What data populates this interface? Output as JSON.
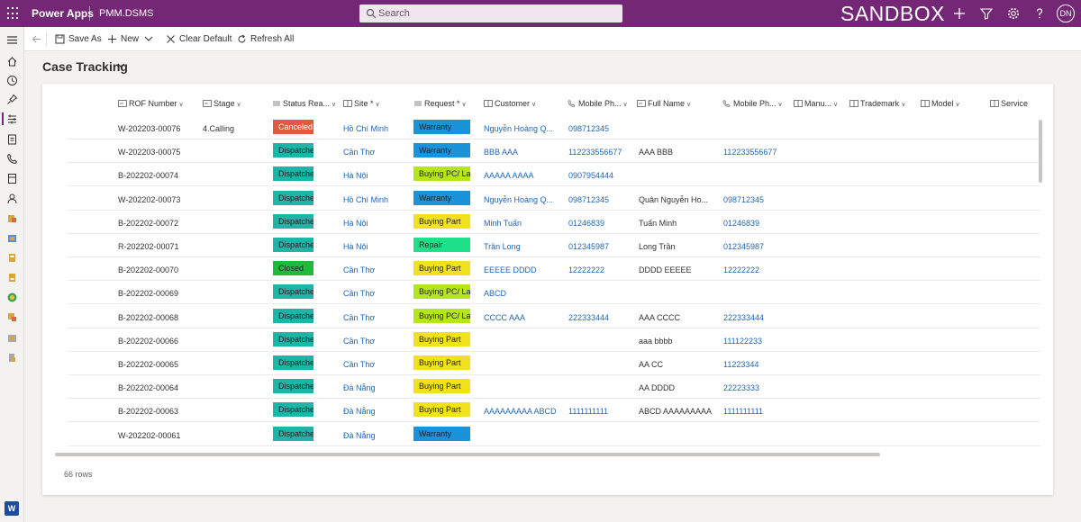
{
  "topbar": {
    "brand": "Power Apps",
    "app_name": "PMM.DSMS",
    "search_placeholder": "Search",
    "environment": "SANDBOX",
    "avatar_initials": "DN",
    "color": "#742774"
  },
  "command_bar": {
    "save_as": "Save As",
    "new": "New",
    "clear_default": "Clear Default",
    "refresh_all": "Refresh All"
  },
  "view": {
    "title": "Case Tracking"
  },
  "columns": {
    "rof_number": "ROF Number",
    "stage": "Stage",
    "status_reason": "Status Rea...",
    "site": "Site *",
    "request": "Request *",
    "customer": "Customer",
    "mobile_phone": "Mobile Ph...",
    "full_name": "Full Name",
    "mobile_phone2": "Mobile Ph...",
    "manufacturer": "Manu...",
    "trademark": "Trademark",
    "model": "Model",
    "service": "Service"
  },
  "status_colors": {
    "Canceled": "#e05a3c",
    "Dispatched": "#1db5a8",
    "Closed": "#1fba3c"
  },
  "request_colors": {
    "Warranty": "#1a93d9",
    "Buying PC/ Lap": "#b5e61d",
    "Buying Part": "#f2e21d",
    "Repair": "#1de089"
  },
  "rows": [
    {
      "rof": "W-202203-00076",
      "stage": "4.Calling",
      "status": "Canceled",
      "site": "Hồ Chí Minh",
      "request": "Warranty",
      "customer": "Nguyễn Hoàng Q...",
      "phone": "098712345",
      "full_name": "",
      "phone2": ""
    },
    {
      "rof": "W-202203-00075",
      "stage": "",
      "status": "Dispatched",
      "site": "Cần Thơ",
      "request": "Warranty",
      "customer": "BBB AAA",
      "phone": "112233556677",
      "full_name": "AAA BBB",
      "phone2": "112233556677"
    },
    {
      "rof": "B-202202-00074",
      "stage": "",
      "status": "Dispatched",
      "site": "Hà Nội",
      "request": "Buying PC/ Lap",
      "customer": "AAAAA AAAA",
      "phone": "0907954444",
      "full_name": "",
      "phone2": ""
    },
    {
      "rof": "W-202202-00073",
      "stage": "",
      "status": "Dispatched",
      "site": "Hồ Chí Minh",
      "request": "Warranty",
      "customer": "Nguyễn Hoàng Q...",
      "phone": "098712345",
      "full_name": "Quân Nguyễn Ho...",
      "phone2": "098712345"
    },
    {
      "rof": "B-202202-00072",
      "stage": "",
      "status": "Dispatched",
      "site": "Hà Nội",
      "request": "Buying Part",
      "customer": "Minh Tuấn",
      "phone": "01246839",
      "full_name": "Tuấn Minh",
      "phone2": "01246839"
    },
    {
      "rof": "R-202202-00071",
      "stage": "",
      "status": "Dispatched",
      "site": "Hà Nội",
      "request": "Repair",
      "customer": "Trần Long",
      "phone": "012345987",
      "full_name": "Long Trần",
      "phone2": "012345987"
    },
    {
      "rof": "B-202202-00070",
      "stage": "",
      "status": "Closed",
      "site": "Cần Thơ",
      "request": "Buying Part",
      "customer": "EEEEE DDDD",
      "phone": "12222222",
      "full_name": "DDDD EEEEE",
      "phone2": "12222222"
    },
    {
      "rof": "B-202202-00069",
      "stage": "",
      "status": "Dispatched",
      "site": "Cần Thơ",
      "request": "Buying PC/ Lap",
      "customer": "ABCD",
      "phone": "",
      "full_name": "",
      "phone2": ""
    },
    {
      "rof": "B-202202-00068",
      "stage": "",
      "status": "Dispatched",
      "site": "Cần Thơ",
      "request": "Buying PC/ Lap",
      "customer": "CCCC AAA",
      "phone": "222333444",
      "full_name": "AAA CCCC",
      "phone2": "222333444"
    },
    {
      "rof": "B-202202-00066",
      "stage": "",
      "status": "Dispatched",
      "site": "Cần Thơ",
      "request": "Buying Part",
      "customer": "",
      "phone": "",
      "full_name": "aaa bbbb",
      "phone2": "111122233"
    },
    {
      "rof": "B-202202-00065",
      "stage": "",
      "status": "Dispatched",
      "site": "Cần Thơ",
      "request": "Buying Part",
      "customer": "",
      "phone": "",
      "full_name": "AA CC",
      "phone2": "11223344"
    },
    {
      "rof": "B-202202-00064",
      "stage": "",
      "status": "Dispatched",
      "site": "Đà Nẵng",
      "request": "Buying Part",
      "customer": "",
      "phone": "",
      "full_name": "AA DDDD",
      "phone2": "22223333"
    },
    {
      "rof": "B-202202-00063",
      "stage": "",
      "status": "Dispatched",
      "site": "Đà Nẵng",
      "request": "Buying Part",
      "customer": "AAAAAAAAA ABCD",
      "phone": "1111111111",
      "full_name": "ABCD AAAAAAAAA",
      "phone2": "1111111111"
    },
    {
      "rof": "W-202202-00061",
      "stage": "",
      "status": "Dispatched",
      "site": "Đà Nẵng",
      "request": "Warranty",
      "customer": "",
      "phone": "",
      "full_name": "",
      "phone2": ""
    }
  ],
  "footer": {
    "row_count": "66 rows"
  }
}
